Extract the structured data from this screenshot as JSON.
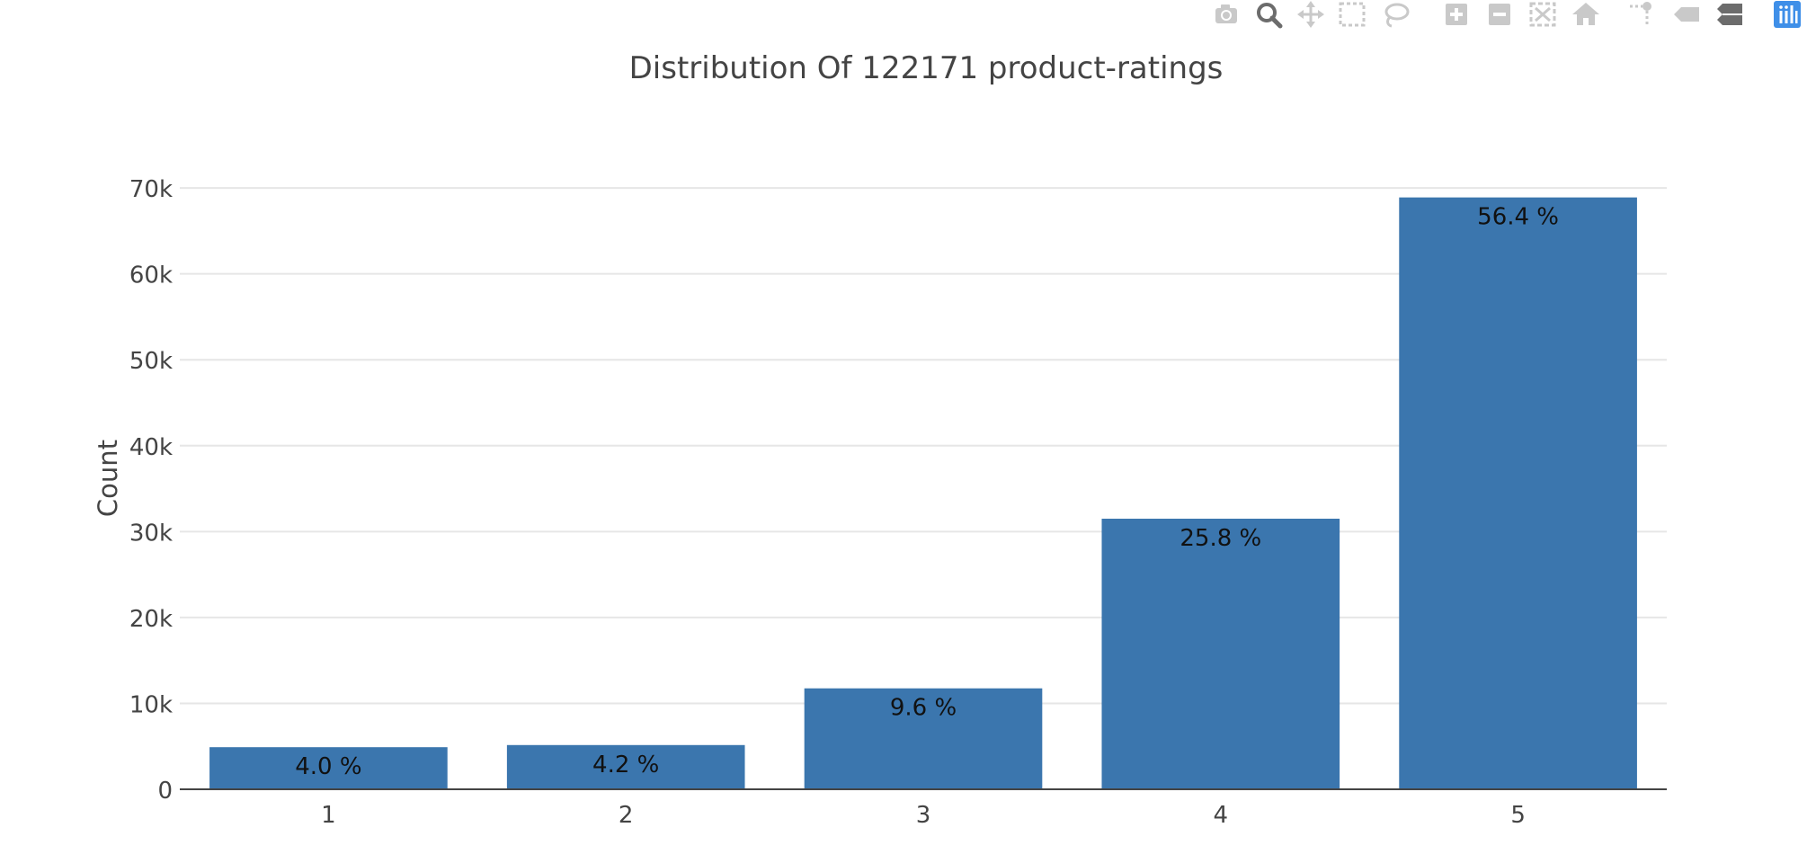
{
  "modebar": {
    "icons": [
      "camera-icon",
      "zoom-icon",
      "pan-icon",
      "box-select-icon",
      "lasso-select-icon",
      "zoom-in-icon",
      "zoom-out-icon",
      "autoscale-icon",
      "reset-axes-icon",
      "spike-lines-icon",
      "hover-closest-icon",
      "hover-compare-icon",
      "plotly-logo-icon"
    ],
    "colors": {
      "inactive": "#c9c9c9",
      "active": "#6c6c6c",
      "logo": "#3f8fe8"
    }
  },
  "colors": {
    "bar": "#3b76ae",
    "grid": "#e6e6e6",
    "axis_line": "#444444",
    "text": "#444444",
    "label_text": "#111111"
  },
  "chart_data": {
    "type": "bar",
    "title": "Distribution Of 122171 product-ratings",
    "xlabel": "",
    "ylabel": "Count",
    "categories": [
      "1",
      "2",
      "3",
      "4",
      "5"
    ],
    "values": [
      4900,
      5150,
      11750,
      31500,
      68900
    ],
    "bar_labels": [
      "4.0 %",
      "4.2 %",
      "9.6 %",
      "25.8 %",
      "56.4 %"
    ],
    "ylim": [
      0,
      72000
    ],
    "yticks": [
      0,
      10000,
      20000,
      30000,
      40000,
      50000,
      60000,
      70000
    ],
    "ytick_labels": [
      "0",
      "10k",
      "20k",
      "30k",
      "40k",
      "50k",
      "60k",
      "70k"
    ],
    "grid": true,
    "legend": "none"
  }
}
